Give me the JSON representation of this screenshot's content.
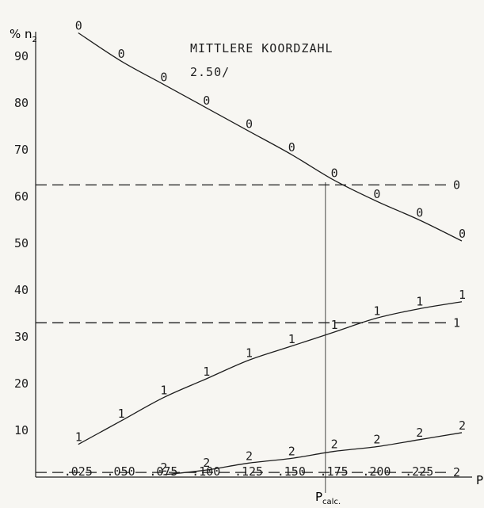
{
  "chart_data": {
    "type": "line",
    "title": "MITTLERE KOORDZAHL",
    "subtitle": "2.50/",
    "ylabel": "% n",
    "ylabel_sub": "2",
    "xlabel": "P",
    "vline_label": "P",
    "vline_label_sub": "calc.",
    "x_ticks": [
      ".025",
      ".050",
      ".075",
      ".100",
      ".125",
      ".150",
      ".175",
      ".200",
      ".225"
    ],
    "x_tick_values": [
      0.025,
      0.05,
      0.075,
      0.1,
      0.125,
      0.15,
      0.175,
      0.2,
      0.225
    ],
    "y_ticks": [
      "10",
      "20",
      "30",
      "40",
      "50",
      "60",
      "70",
      "80",
      "90"
    ],
    "y_tick_values": [
      10,
      20,
      30,
      40,
      50,
      60,
      70,
      80,
      90
    ],
    "xlim": [
      0,
      0.25
    ],
    "ylim": [
      0,
      100
    ],
    "grid": false,
    "series": [
      {
        "name": "0",
        "marker": "0",
        "x": [
          0.025,
          0.05,
          0.075,
          0.1,
          0.125,
          0.15,
          0.175,
          0.2,
          0.225,
          0.25
        ],
        "y": [
          95,
          89,
          84,
          79,
          74,
          69,
          63.5,
          59,
          55,
          50.5
        ]
      },
      {
        "name": "1",
        "marker": "1",
        "x": [
          0.025,
          0.05,
          0.075,
          0.1,
          0.125,
          0.15,
          0.175,
          0.2,
          0.225,
          0.25
        ],
        "y": [
          7,
          12,
          17,
          21,
          25,
          28,
          31,
          34,
          36,
          37.5
        ]
      },
      {
        "name": "2",
        "marker": "2",
        "x": [
          0.075,
          0.1,
          0.125,
          0.15,
          0.175,
          0.2,
          0.225,
          0.25
        ],
        "y": [
          0.5,
          1.5,
          3,
          4,
          5.5,
          6.5,
          8,
          9.5
        ]
      }
    ],
    "reference_lines": [
      {
        "y": 62.5,
        "label": "0",
        "style": "dashed"
      },
      {
        "y": 33,
        "label": "1",
        "style": "dashed"
      },
      {
        "y": 1,
        "label": "2",
        "style": "dashed"
      }
    ],
    "vline_x": 0.17
  }
}
